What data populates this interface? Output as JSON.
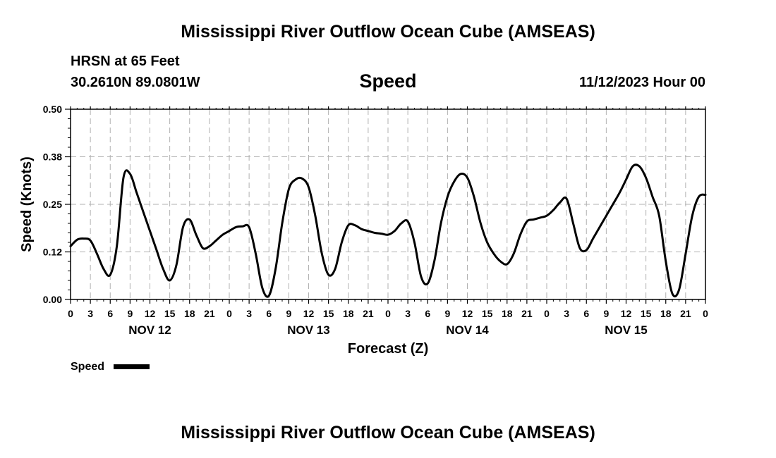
{
  "header": {
    "title": "Mississippi River Outflow Ocean Cube (AMSEAS)",
    "station": "HRSN at 65 Feet",
    "coords": "30.2610N  89.0801W",
    "variable": "Speed",
    "datetime": "11/12/2023 Hour 00"
  },
  "footer": {
    "title": "Mississippi River Outflow Ocean Cube (AMSEAS)"
  },
  "chart_data": {
    "type": "line",
    "title": "Speed",
    "xlabel": "Forecast (Z)",
    "ylabel": "Speed (Knots)",
    "ylim": [
      0,
      0.5
    ],
    "yticks": [
      "0.00",
      "0.12",
      "0.25",
      "0.38",
      "0.50"
    ],
    "xlim": [
      0,
      96
    ],
    "xticks": [
      "0",
      "3",
      "6",
      "9",
      "12",
      "15",
      "18",
      "21",
      "0",
      "3",
      "6",
      "9",
      "12",
      "15",
      "18",
      "21",
      "0",
      "3",
      "6",
      "9",
      "12",
      "15",
      "18",
      "21",
      "0",
      "3",
      "6",
      "9",
      "12",
      "15",
      "18",
      "21",
      "0"
    ],
    "date_labels": [
      {
        "label": "NOV 12",
        "hour": 12
      },
      {
        "label": "NOV 13",
        "hour": 36
      },
      {
        "label": "NOV 14",
        "hour": 60
      },
      {
        "label": "NOV 15",
        "hour": 84
      }
    ],
    "grid": true,
    "legend": {
      "position": "bottom-left",
      "entries": [
        "Speed"
      ]
    },
    "series": [
      {
        "name": "Speed",
        "color": "#000000",
        "x": [
          0,
          1,
          2,
          3,
          4,
          5,
          6,
          7,
          8,
          9,
          10,
          11,
          12,
          13,
          14,
          15,
          16,
          17,
          18,
          19,
          20,
          21,
          22,
          23,
          24,
          25,
          26,
          27,
          28,
          29,
          30,
          31,
          32,
          33,
          34,
          35,
          36,
          37,
          38,
          39,
          40,
          41,
          42,
          43,
          44,
          45,
          46,
          47,
          48,
          49,
          50,
          51,
          52,
          53,
          54,
          55,
          56,
          57,
          58,
          59,
          60,
          61,
          62,
          63,
          64,
          65,
          66,
          67,
          68,
          69,
          70,
          71,
          72,
          73,
          74,
          75,
          76,
          77,
          78,
          79,
          80,
          81,
          82,
          83,
          84,
          85,
          86,
          87,
          88,
          89,
          90,
          91,
          92,
          93,
          94,
          95,
          96
        ],
        "y": [
          0.14,
          0.157,
          0.16,
          0.155,
          0.12,
          0.08,
          0.065,
          0.14,
          0.32,
          0.33,
          0.28,
          0.23,
          0.18,
          0.13,
          0.08,
          0.05,
          0.09,
          0.19,
          0.21,
          0.17,
          0.135,
          0.14,
          0.155,
          0.17,
          0.18,
          0.19,
          0.192,
          0.19,
          0.12,
          0.03,
          0.01,
          0.08,
          0.2,
          0.29,
          0.315,
          0.318,
          0.295,
          0.22,
          0.12,
          0.065,
          0.08,
          0.15,
          0.195,
          0.195,
          0.185,
          0.18,
          0.175,
          0.173,
          0.17,
          0.18,
          0.2,
          0.205,
          0.15,
          0.06,
          0.042,
          0.1,
          0.2,
          0.27,
          0.31,
          0.33,
          0.32,
          0.27,
          0.2,
          0.15,
          0.12,
          0.1,
          0.093,
          0.12,
          0.17,
          0.205,
          0.21,
          0.215,
          0.22,
          0.235,
          0.255,
          0.265,
          0.2,
          0.135,
          0.13,
          0.16,
          0.19,
          0.22,
          0.25,
          0.28,
          0.315,
          0.35,
          0.35,
          0.32,
          0.27,
          0.22,
          0.1,
          0.015,
          0.025,
          0.12,
          0.22,
          0.27,
          0.275
        ]
      }
    ]
  }
}
